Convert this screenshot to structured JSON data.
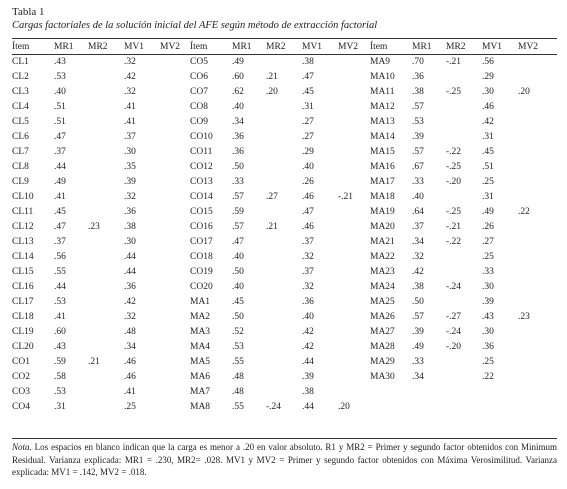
{
  "table": {
    "label": "Tabla 1",
    "caption": "Cargas factoriales de la solución inicial del AFE según método de extracción factorial",
    "headers": [
      "Ítem",
      "MR1",
      "MR2",
      "MV1",
      "MV2"
    ],
    "groups": [
      [
        [
          "CL1",
          ".43",
          "",
          ".32",
          ""
        ],
        [
          "CL2",
          ".53",
          "",
          ".42",
          ""
        ],
        [
          "CL3",
          ".40",
          "",
          ".32",
          ""
        ],
        [
          "CL4",
          ".51",
          "",
          ".41",
          ""
        ],
        [
          "CL5",
          ".51",
          "",
          ".41",
          ""
        ],
        [
          "CL6",
          ".47",
          "",
          ".37",
          ""
        ],
        [
          "CL7",
          ".37",
          "",
          ".30",
          ""
        ],
        [
          "CL8",
          ".44",
          "",
          ".35",
          ""
        ],
        [
          "CL9",
          ".49",
          "",
          ".39",
          ""
        ],
        [
          "CL10",
          ".41",
          "",
          ".32",
          ""
        ],
        [
          "CL11",
          ".45",
          "",
          ".36",
          ""
        ],
        [
          "CL12",
          ".47",
          ".23",
          ".38",
          ""
        ],
        [
          "CL13",
          ".37",
          "",
          ".30",
          ""
        ],
        [
          "CL14",
          ".56",
          "",
          ".44",
          ""
        ],
        [
          "CL15",
          ".55",
          "",
          ".44",
          ""
        ],
        [
          "CL16",
          ".44",
          "",
          ".36",
          ""
        ],
        [
          "CL17",
          ".53",
          "",
          ".42",
          ""
        ],
        [
          "CL18",
          ".41",
          "",
          ".32",
          ""
        ],
        [
          "CL19",
          ".60",
          "",
          ".48",
          ""
        ],
        [
          "CL20",
          ".43",
          "",
          ".34",
          ""
        ],
        [
          "CO1",
          ".59",
          ".21",
          ".46",
          ""
        ],
        [
          "CO2",
          ".58",
          "",
          ".46",
          ""
        ],
        [
          "CO3",
          ".53",
          "",
          ".41",
          ""
        ],
        [
          "CO4",
          ".31",
          "",
          ".25",
          ""
        ]
      ],
      [
        [
          "CO5",
          ".49",
          "",
          ".38",
          ""
        ],
        [
          "CO6",
          ".60",
          ".21",
          ".47",
          ""
        ],
        [
          "CO7",
          ".62",
          ".20",
          ".45",
          ""
        ],
        [
          "CO8",
          ".40",
          "",
          ".31",
          ""
        ],
        [
          "CO9",
          ".34",
          "",
          ".27",
          ""
        ],
        [
          "CO10",
          ".36",
          "",
          ".27",
          ""
        ],
        [
          "CO11",
          ".36",
          "",
          ".29",
          ""
        ],
        [
          "CO12",
          ".50",
          "",
          ".40",
          ""
        ],
        [
          "CO13",
          ".33",
          "",
          ".26",
          ""
        ],
        [
          "CO14",
          ".57",
          ".27",
          ".46",
          "-.21"
        ],
        [
          "CO15",
          ".59",
          "",
          ".47",
          ""
        ],
        [
          "CO16",
          ".57",
          ".21",
          ".46",
          ""
        ],
        [
          "CO17",
          ".47",
          "",
          ".37",
          ""
        ],
        [
          "CO18",
          ".40",
          "",
          ".32",
          ""
        ],
        [
          "CO19",
          ".50",
          "",
          ".37",
          ""
        ],
        [
          "CO20",
          ".40",
          "",
          ".32",
          ""
        ],
        [
          "MA1",
          ".45",
          "",
          ".36",
          ""
        ],
        [
          "MA2",
          ".50",
          "",
          ".40",
          ""
        ],
        [
          "MA3",
          ".52",
          "",
          ".42",
          ""
        ],
        [
          "MA4",
          ".53",
          "",
          ".42",
          ""
        ],
        [
          "MA5",
          ".55",
          "",
          ".44",
          ""
        ],
        [
          "MA6",
          ".48",
          "",
          ".39",
          ""
        ],
        [
          "MA7",
          ".48",
          "",
          ".38",
          ""
        ],
        [
          "MA8",
          ".55",
          "-.24",
          ".44",
          ".20"
        ]
      ],
      [
        [
          "MA9",
          ".70",
          "-.21",
          ".56",
          ""
        ],
        [
          "MA10",
          ".36",
          "",
          ".29",
          ""
        ],
        [
          "MA11",
          ".38",
          "-.25",
          ".30",
          ".20"
        ],
        [
          "MA12",
          ".57",
          "",
          ".46",
          ""
        ],
        [
          "MA13",
          ".53",
          "",
          ".42",
          ""
        ],
        [
          "MA14",
          ".39",
          "",
          ".31",
          ""
        ],
        [
          "MA15",
          ".57",
          "-.22",
          ".45",
          ""
        ],
        [
          "MA16",
          ".67",
          "-.25",
          ".51",
          ""
        ],
        [
          "MA17",
          ".33",
          "-.20",
          ".25",
          ""
        ],
        [
          "MA18",
          ".40",
          "",
          ".31",
          ""
        ],
        [
          "MA19",
          ".64",
          "-.25",
          ".49",
          ".22"
        ],
        [
          "MA20",
          ".37",
          "-.21",
          ".26",
          ""
        ],
        [
          "MA21",
          ".34",
          "-.22",
          ".27",
          ""
        ],
        [
          "MA22",
          ".32",
          "",
          ".25",
          ""
        ],
        [
          "MA23",
          ".42",
          "",
          ".33",
          ""
        ],
        [
          "MA24",
          ".38",
          "-.24",
          ".30",
          ""
        ],
        [
          "MA25",
          ".50",
          "",
          ".39",
          ""
        ],
        [
          "MA26",
          ".57",
          "-.27",
          ".43",
          ".23"
        ],
        [
          "MA27",
          ".39",
          "-.24",
          ".30",
          ""
        ],
        [
          "MA28",
          ".49",
          "-.20",
          ".36",
          ""
        ],
        [
          "MA29",
          ".33",
          "",
          ".25",
          ""
        ],
        [
          "MA30",
          ".34",
          "",
          ".22",
          ""
        ]
      ]
    ]
  },
  "note": {
    "label": "Nota.",
    "text": "Los espacios en blanco indican que la carga es menor a .20 en valor absoluto. R1 y MR2 = Primer y segundo factor obtenidos con Minimum Residual. Varianza explicada: MR1 = .230, MR2= .028. MV1 y MV2 = Primer y segundo factor obtenidos con Máxima Verosimilitud. Varianza explicada: MV1 = .142, MV2 = .018."
  }
}
